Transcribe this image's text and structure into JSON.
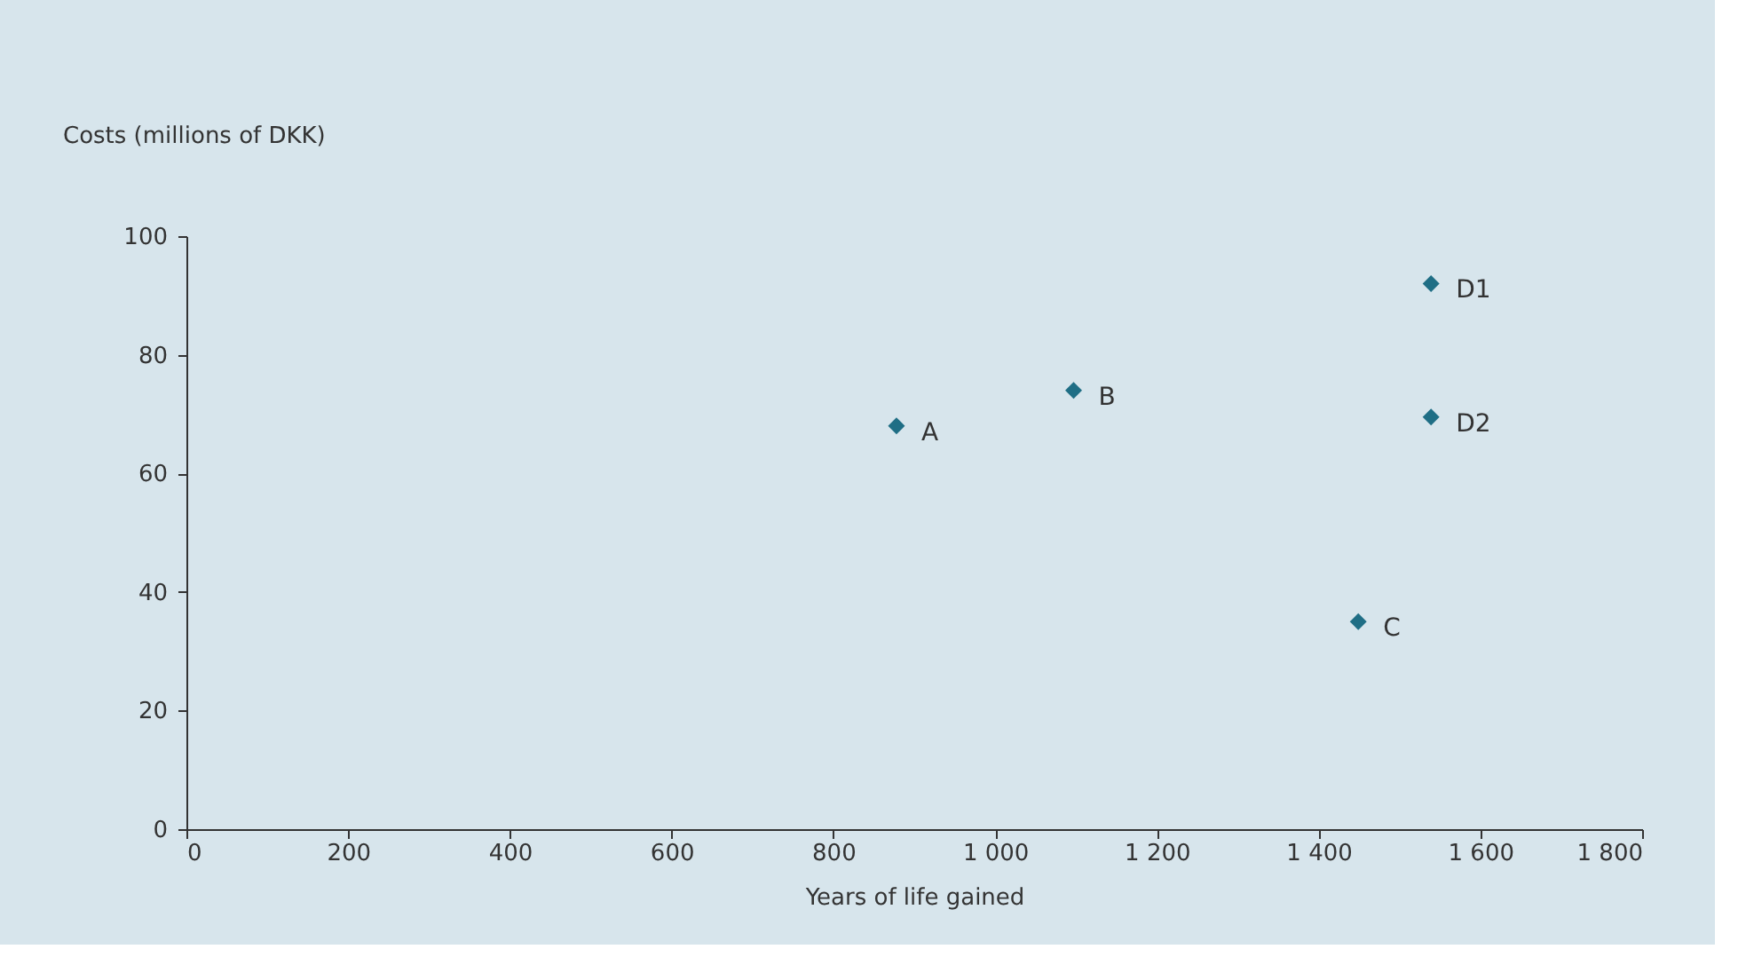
{
  "chart_data": {
    "type": "scatter",
    "xlabel": "Years of life gained",
    "ylabel": "Costs (millions of DKK)",
    "x": [
      878,
      1097,
      1449,
      1539,
      1539
    ],
    "series": [
      {
        "color": "#1f6e85",
        "values": [
          68,
          74,
          35,
          92,
          69.5
        ]
      }
    ],
    "marker": "diamond",
    "grid": false,
    "xlim": [
      0,
      1800
    ],
    "ylim": [
      0,
      100
    ],
    "xticks": [
      0,
      200,
      400,
      600,
      800,
      {
        "value": 1000,
        "label": "1 000"
      },
      {
        "value": 1200,
        "label": "1 200"
      },
      {
        "value": 1400,
        "label": "1 400"
      },
      {
        "value": 1600,
        "label": "1 600"
      },
      {
        "value": 1800,
        "label": "1 800"
      }
    ],
    "yticks": [
      0,
      20,
      40,
      60,
      80,
      100
    ],
    "annotations": [
      {
        "text": "A",
        "x": 878,
        "y": 68
      },
      {
        "text": "B",
        "x": 1097,
        "y": 74
      },
      {
        "text": "C",
        "x": 1449,
        "y": 35
      },
      {
        "text": "D1",
        "x": 1539,
        "y": 92
      },
      {
        "text": "D2",
        "x": 1539,
        "y": 69.5
      }
    ]
  }
}
